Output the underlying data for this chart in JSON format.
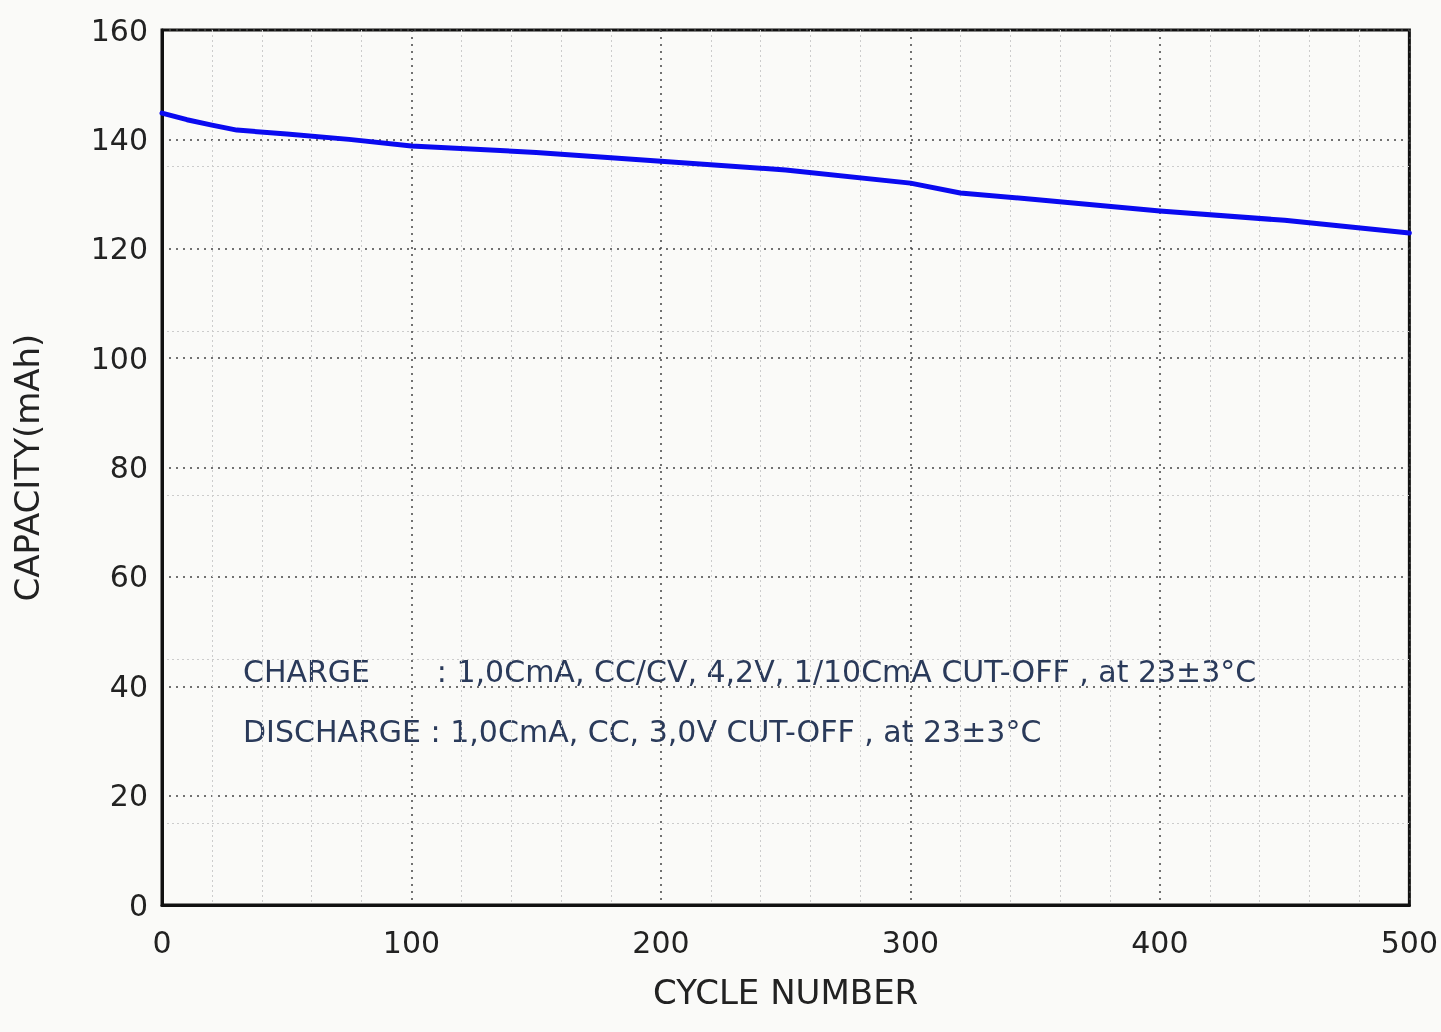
{
  "chart_data": {
    "type": "line",
    "xlabel": "CYCLE NUMBER",
    "ylabel": "CAPACITY(mAh)",
    "x": [
      0,
      10,
      20,
      30,
      50,
      75,
      100,
      150,
      200,
      250,
      300,
      320,
      350,
      400,
      450,
      500
    ],
    "series": [
      {
        "color": "#0a0af0",
        "values": [
          144.8,
          143.6,
          142.6,
          141.7,
          141,
          140,
          138.8,
          137.6,
          136,
          134.4,
          132,
          130.2,
          129,
          126.9,
          125.2,
          122.9
        ]
      }
    ],
    "xlim": [
      0,
      500
    ],
    "xticks": [
      0,
      100,
      200,
      300,
      400,
      500
    ],
    "ylim": [
      0,
      160
    ],
    "yticks": [
      0,
      20,
      40,
      60,
      80,
      100,
      120,
      140,
      160
    ],
    "grid": true,
    "marker": "none",
    "line_style": "solid",
    "annotations": [
      "CHARGE       : 1,0CmA, CC/CV, 4,2V, 1/10CmA CUT-OFF , at 23±3°C",
      "DISCHARGE : 1,0CmA, CC, 3,0V CUT-OFF , at 23±3°C"
    ]
  }
}
